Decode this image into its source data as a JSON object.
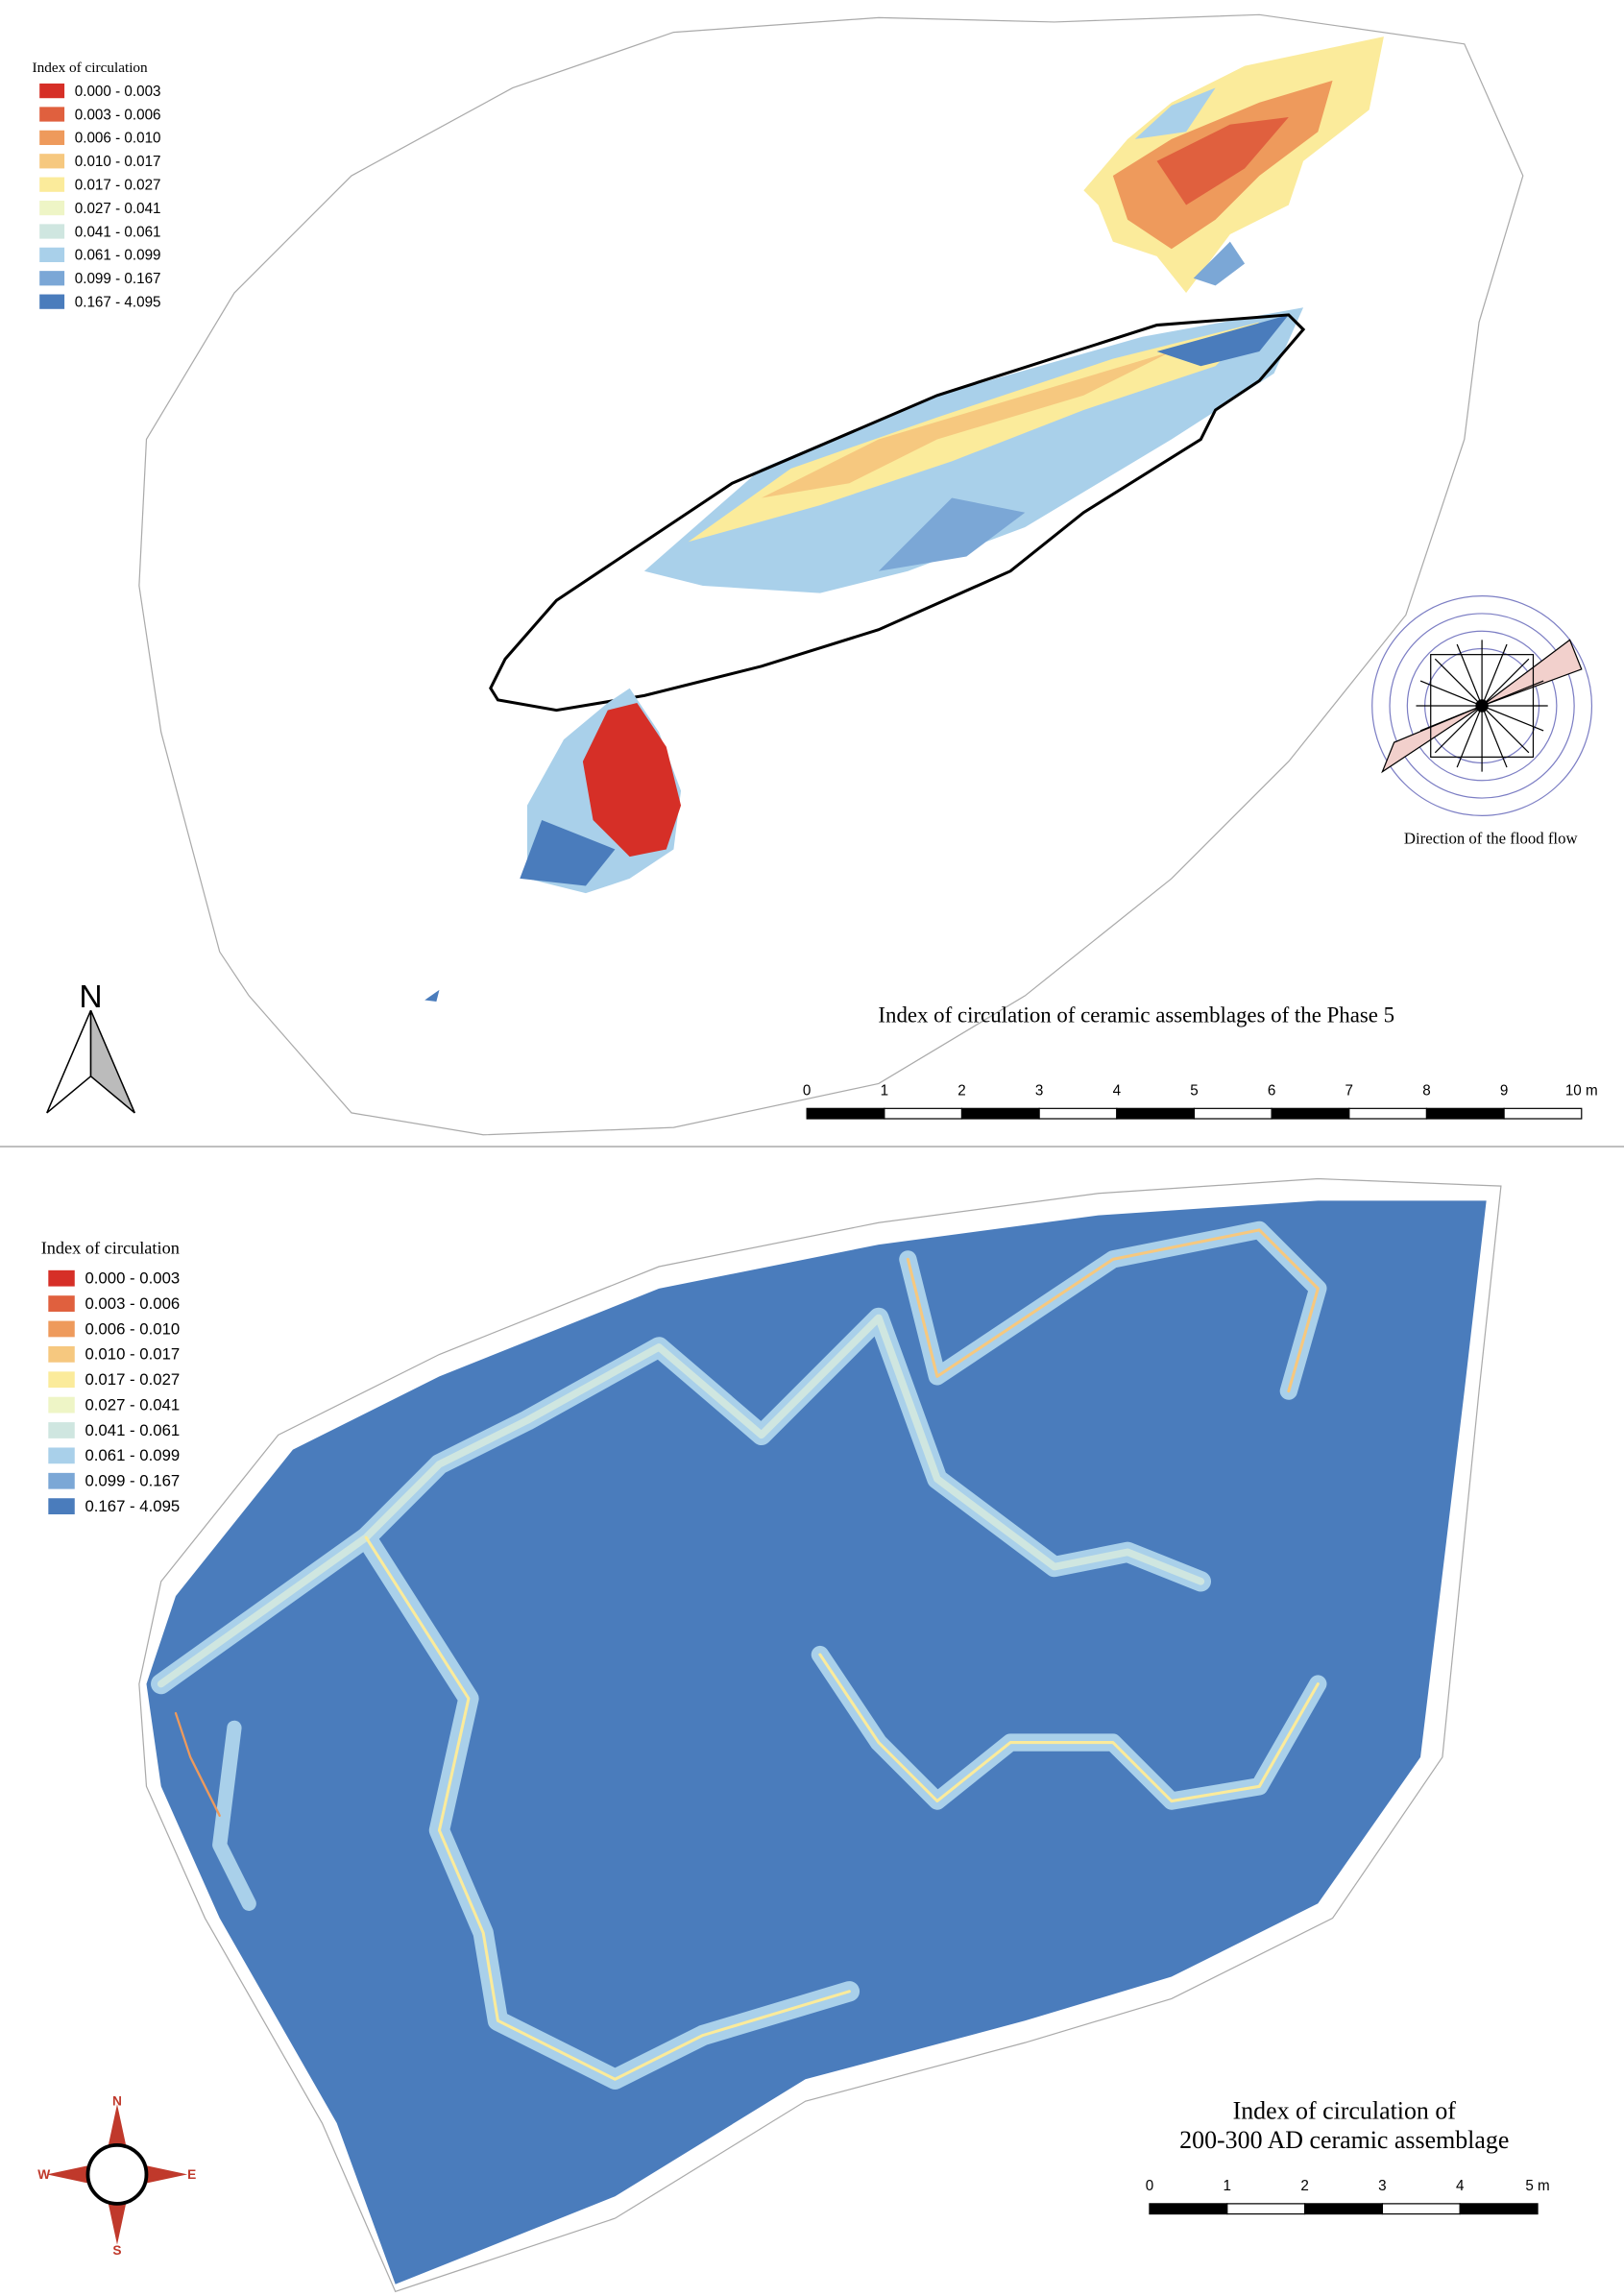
{
  "maps": [
    {
      "legend": {
        "title": "Index of circulation",
        "items": [
          {
            "label": "0.000 - 0.003",
            "color": "#d62f27"
          },
          {
            "label": "0.003 - 0.006",
            "color": "#e0603e"
          },
          {
            "label": "0.006 - 0.010",
            "color": "#ee9a5c"
          },
          {
            "label": "0.010 - 0.017",
            "color": "#f6c87f"
          },
          {
            "label": "0.017 - 0.027",
            "color": "#fbeb9b"
          },
          {
            "label": "0.027 - 0.041",
            "color": "#eef5c6"
          },
          {
            "label": "0.041 - 0.061",
            "color": "#cfe6e0"
          },
          {
            "label": "0.061 - 0.099",
            "color": "#a9d0ea"
          },
          {
            "label": "0.099 - 0.167",
            "color": "#7ba7d6"
          },
          {
            "label": "0.167 - 4.095",
            "color": "#4a7cbc"
          }
        ]
      },
      "title": "Index of circulation of ceramic assemblages of the Phase 5",
      "rose_caption": "Direction of the flood flow",
      "north": "N",
      "scale_labels": [
        "0",
        "1",
        "2",
        "3",
        "4",
        "5",
        "6",
        "7",
        "8",
        "9",
        "10 m"
      ]
    },
    {
      "legend": {
        "title": "Index of circulation",
        "items": [
          {
            "label": "0.000 - 0.003",
            "color": "#d62f27"
          },
          {
            "label": "0.003 - 0.006",
            "color": "#e0603e"
          },
          {
            "label": "0.006 - 0.010",
            "color": "#ee9a5c"
          },
          {
            "label": "0.010 - 0.017",
            "color": "#f6c87f"
          },
          {
            "label": "0.017 - 0.027",
            "color": "#fbeb9b"
          },
          {
            "label": "0.027 - 0.041",
            "color": "#eef5c6"
          },
          {
            "label": "0.041 - 0.061",
            "color": "#cfe6e0"
          },
          {
            "label": "0.061 - 0.099",
            "color": "#a9d0ea"
          },
          {
            "label": "0.099 - 0.167",
            "color": "#7ba7d6"
          },
          {
            "label": "0.167 - 4.095",
            "color": "#4a7cbc"
          }
        ]
      },
      "title_lines": [
        "Index of circulation of",
        "200-300 AD ceramic assemblage"
      ],
      "compass": {
        "n": "N",
        "e": "E",
        "s": "S",
        "w": "W"
      },
      "scale_labels": [
        "0",
        "1",
        "2",
        "3",
        "4",
        "5 m"
      ]
    }
  ]
}
